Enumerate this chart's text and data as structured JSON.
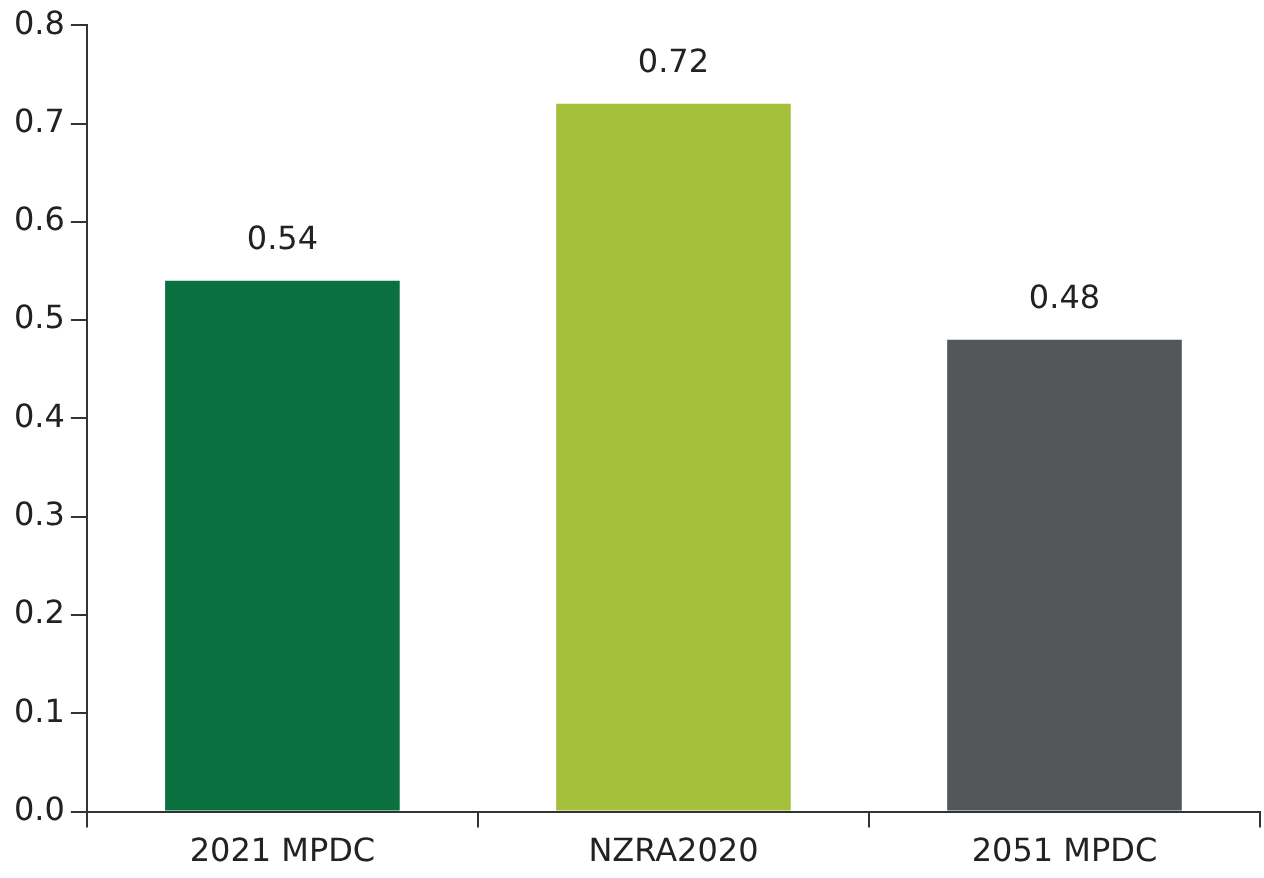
{
  "chart_data": {
    "type": "bar",
    "categories": [
      "2021 MPDC",
      "NZRA2020",
      "2051 MPDC"
    ],
    "values": [
      0.54,
      0.72,
      0.48
    ],
    "colors": [
      "#0b7040",
      "#a5c03a",
      "#54575a"
    ],
    "ylim": [
      0,
      0.8
    ],
    "yticks": [
      {
        "value": 0,
        "label": "0.0"
      },
      0.1,
      0.2,
      0.3,
      0.4,
      0.5,
      0.6,
      0.7,
      0.8
    ],
    "grid": false,
    "data_labels": true,
    "legend": false
  }
}
